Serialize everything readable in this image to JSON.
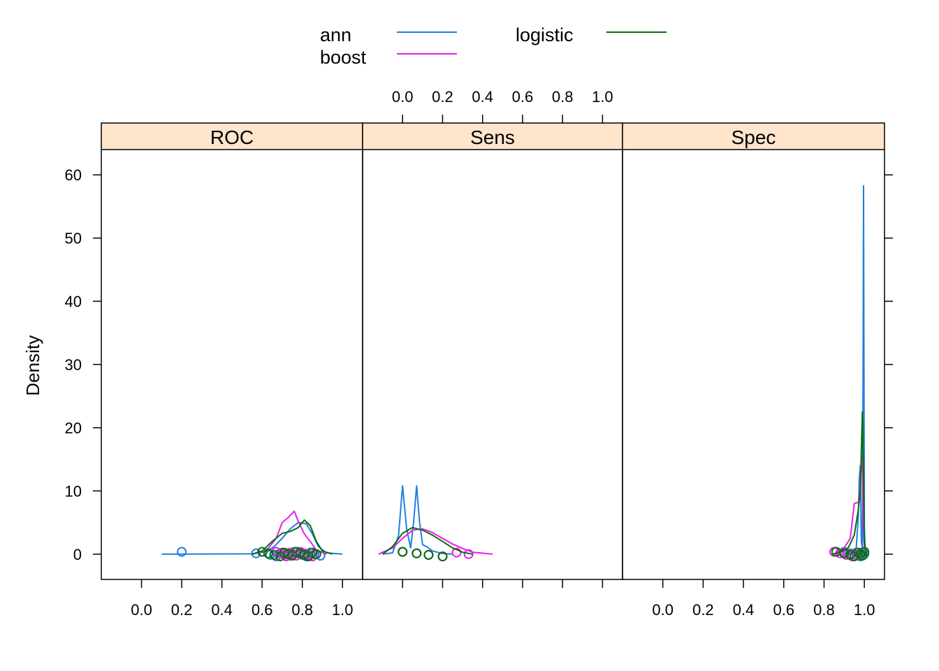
{
  "chart_data": {
    "type": "density",
    "ylabel": "Density",
    "xlim": [
      -0.2,
      1.1
    ],
    "ylim": [
      -4,
      64
    ],
    "x_ticks": [
      "0.0",
      "0.2",
      "0.4",
      "0.6",
      "0.8",
      "1.0"
    ],
    "x_tick_values": [
      0.0,
      0.2,
      0.4,
      0.6,
      0.8,
      1.0
    ],
    "y_ticks": [
      "0",
      "10",
      "20",
      "30",
      "40",
      "50",
      "60"
    ],
    "y_tick_values": [
      0,
      10,
      20,
      30,
      40,
      50,
      60
    ],
    "x_tick_label_panels": {
      "bottom": [
        "ROC",
        "Spec"
      ],
      "top": [
        "Sens"
      ]
    },
    "legend": {
      "position": "top",
      "entries": [
        {
          "name": "ann",
          "color": "#1f7fe0"
        },
        {
          "name": "boost",
          "color": "#e81ee8"
        },
        {
          "name": "logistic",
          "color": "#0a6e0a"
        }
      ]
    },
    "colors": {
      "strip": "#ffe5cc",
      "panel_border": "#000000"
    },
    "panels": [
      {
        "name": "ROC",
        "series": [
          {
            "name": "ann",
            "color": "#1f7fe0",
            "curve": [
              [
                0.1,
                0
              ],
              [
                0.55,
                0.05
              ],
              [
                0.62,
                0.4
              ],
              [
                0.66,
                1.2
              ],
              [
                0.7,
                2.5
              ],
              [
                0.74,
                4.0
              ],
              [
                0.78,
                5.0
              ],
              [
                0.82,
                4.8
              ],
              [
                0.85,
                3.2
              ],
              [
                0.88,
                1.2
              ],
              [
                0.92,
                0.2
              ],
              [
                1.0,
                0
              ]
            ],
            "points": [
              0.2,
              0.57,
              0.64,
              0.67,
              0.7,
              0.72,
              0.74,
              0.76,
              0.78,
              0.8,
              0.82,
              0.84,
              0.86,
              0.89
            ]
          },
          {
            "name": "boost",
            "color": "#e81ee8",
            "curve": [
              [
                0.55,
                0
              ],
              [
                0.62,
                0.5
              ],
              [
                0.67,
                2.5
              ],
              [
                0.7,
                5.0
              ],
              [
                0.73,
                5.8
              ],
              [
                0.76,
                6.8
              ],
              [
                0.78,
                5.2
              ],
              [
                0.81,
                3.2
              ],
              [
                0.84,
                2.0
              ],
              [
                0.87,
                0.6
              ],
              [
                0.92,
                0
              ]
            ],
            "points": [
              0.67,
              0.69,
              0.71,
              0.72,
              0.74,
              0.75,
              0.77,
              0.79,
              0.81,
              0.83,
              0.85
            ]
          },
          {
            "name": "logistic",
            "color": "#0a6e0a",
            "curve": [
              [
                0.55,
                0
              ],
              [
                0.6,
                0.5
              ],
              [
                0.65,
                2.0
              ],
              [
                0.7,
                3.3
              ],
              [
                0.74,
                3.6
              ],
              [
                0.78,
                4.2
              ],
              [
                0.81,
                5.4
              ],
              [
                0.84,
                4.5
              ],
              [
                0.87,
                2.0
              ],
              [
                0.9,
                0.5
              ],
              [
                0.95,
                0
              ]
            ],
            "points": [
              0.6,
              0.63,
              0.66,
              0.69,
              0.71,
              0.73,
              0.75,
              0.77,
              0.79,
              0.81,
              0.83,
              0.85,
              0.87
            ]
          }
        ]
      },
      {
        "name": "Sens",
        "series": [
          {
            "name": "ann",
            "color": "#1f7fe0",
            "curve": [
              [
                -0.1,
                0
              ],
              [
                -0.05,
                0.2
              ],
              [
                -0.02,
                3.0
              ],
              [
                0.0,
                10.8
              ],
              [
                0.02,
                4.0
              ],
              [
                0.04,
                1.0
              ],
              [
                0.055,
                5.0
              ],
              [
                0.07,
                10.8
              ],
              [
                0.085,
                5.0
              ],
              [
                0.1,
                1.5
              ],
              [
                0.12,
                1.2
              ],
              [
                0.15,
                0.5
              ],
              [
                0.2,
                0.1
              ],
              [
                0.25,
                0
              ]
            ],
            "points": [
              0.0,
              0.07,
              0.13,
              0.2
            ]
          },
          {
            "name": "boost",
            "color": "#e81ee8",
            "curve": [
              [
                -0.12,
                0
              ],
              [
                -0.05,
                1.0
              ],
              [
                0.0,
                2.5
              ],
              [
                0.05,
                3.8
              ],
              [
                0.1,
                4.0
              ],
              [
                0.15,
                3.4
              ],
              [
                0.2,
                2.5
              ],
              [
                0.25,
                1.6
              ],
              [
                0.3,
                0.9
              ],
              [
                0.35,
                0.3
              ],
              [
                0.45,
                0
              ]
            ],
            "points": [
              0.0,
              0.07,
              0.13,
              0.2,
              0.27,
              0.33
            ]
          },
          {
            "name": "logistic",
            "color": "#0a6e0a",
            "curve": [
              [
                -0.1,
                0
              ],
              [
                -0.05,
                1.2
              ],
              [
                0.0,
                3.3
              ],
              [
                0.05,
                4.2
              ],
              [
                0.1,
                3.8
              ],
              [
                0.15,
                3.0
              ],
              [
                0.2,
                2.0
              ],
              [
                0.25,
                1.0
              ],
              [
                0.3,
                0.3
              ],
              [
                0.35,
                0
              ]
            ],
            "points": [
              0.0,
              0.07,
              0.13,
              0.2
            ]
          }
        ]
      },
      {
        "name": "Spec",
        "series": [
          {
            "name": "ann",
            "color": "#1f7fe0",
            "curve": [
              [
                0.9,
                0
              ],
              [
                0.94,
                0.5
              ],
              [
                0.96,
                1.0
              ],
              [
                0.97,
                6.0
              ],
              [
                0.975,
                12.0
              ],
              [
                0.98,
                14.0
              ],
              [
                0.985,
                2.0
              ],
              [
                0.99,
                1.0
              ],
              [
                0.993,
                20.0
              ],
              [
                0.996,
                58.3
              ],
              [
                0.998,
                30.0
              ],
              [
                1.0,
                4.0
              ],
              [
                1.005,
                0
              ]
            ],
            "points": [
              0.9,
              0.93,
              0.96,
              0.98,
              0.99,
              1.0
            ]
          },
          {
            "name": "boost",
            "color": "#e81ee8",
            "curve": [
              [
                0.85,
                0
              ],
              [
                0.9,
                1.0
              ],
              [
                0.93,
                2.5
              ],
              [
                0.95,
                8.0
              ],
              [
                0.97,
                8.2
              ],
              [
                0.98,
                10.5
              ],
              [
                0.985,
                16.0
              ],
              [
                0.99,
                13.0
              ],
              [
                0.995,
                5.0
              ],
              [
                1.0,
                1.0
              ],
              [
                1.01,
                0
              ]
            ],
            "points": [
              0.85,
              0.88,
              0.91,
              0.94,
              0.96,
              0.98,
              0.99
            ]
          },
          {
            "name": "logistic",
            "color": "#0a6e0a",
            "curve": [
              [
                0.84,
                0
              ],
              [
                0.88,
                0.3
              ],
              [
                0.92,
                1.0
              ],
              [
                0.95,
                3.0
              ],
              [
                0.97,
                7.0
              ],
              [
                0.98,
                10.0
              ],
              [
                0.99,
                22.5
              ],
              [
                0.995,
                15.0
              ],
              [
                1.0,
                2.0
              ],
              [
                1.01,
                0
              ]
            ],
            "points": [
              0.86,
              0.9,
              0.93,
              0.95,
              0.97,
              0.98,
              0.99,
              1.0
            ]
          }
        ]
      }
    ]
  }
}
